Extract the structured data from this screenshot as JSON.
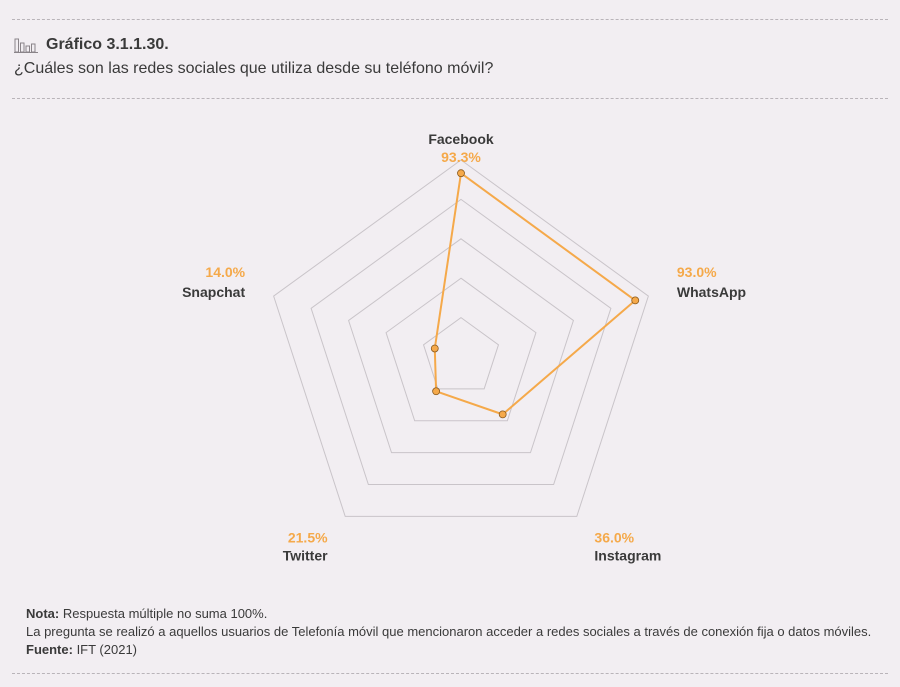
{
  "header": {
    "title": "Gráfico 3.1.1.30.",
    "subtitle": "¿Cuáles son las redes sociales que utiliza desde su teléfono móvil?"
  },
  "colors": {
    "accent": "#f5a94a",
    "grid": "#c9c4c9",
    "text": "#3a3a3a"
  },
  "chart_data": {
    "type": "radar",
    "title": "",
    "max": 100,
    "levels": 5,
    "categories": [
      "Facebook",
      "WhatsApp",
      "Instagram",
      "Twitter",
      "Snapchat"
    ],
    "values": [
      93.3,
      93.0,
      36.0,
      21.5,
      14.0
    ],
    "value_labels": [
      "93.3%",
      "93.0%",
      "36.0%",
      "21.5%",
      "14.0%"
    ]
  },
  "footer": {
    "nota_label": "Nota:",
    "nota_text": " Respuesta múltiple no suma 100%.",
    "detalle": "La pregunta se realizó a aquellos usuarios de Telefonía móvil que mencionaron acceder a redes sociales a través de conexión fija o datos móviles.",
    "fuente_label": "Fuente:",
    "fuente_text": " IFT (2021)"
  }
}
